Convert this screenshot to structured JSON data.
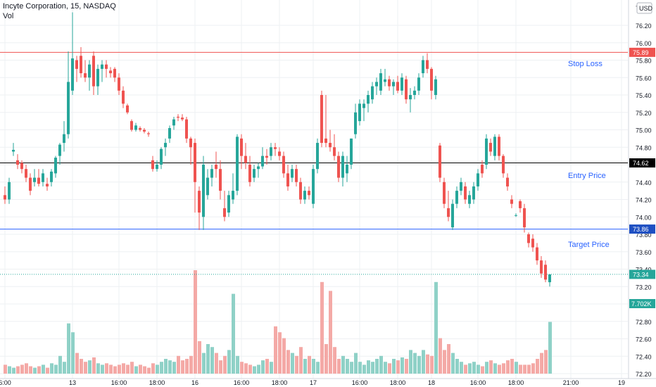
{
  "header": {
    "symbol": "Incyte Corporation, 15, NASDAQ",
    "indicator": "Vol",
    "currency": "USD"
  },
  "colors": {
    "up": "#26a69a",
    "down": "#ef5350",
    "up_vol": "#8fd1c7",
    "down_vol": "#f4a9a6",
    "stop": "#ef5350",
    "entry": "#000000",
    "target": "#2962ff",
    "target_badge": "#1e4fc2",
    "last": "#26a69a",
    "annotation": "#2962ff"
  },
  "chart_data": {
    "type": "candlestick",
    "symbol": "Incyte Corporation",
    "interval": "15",
    "exchange": "NASDAQ",
    "y_axis": {
      "ticks": [
        "76.20",
        "76.00",
        "75.80",
        "75.60",
        "75.40",
        "75.20",
        "75.00",
        "74.80",
        "74.60",
        "74.40",
        "74.20",
        "74.00",
        "73.80",
        "73.60",
        "73.40",
        "73.20",
        "73.00",
        "72.80",
        "72.60",
        "72.40",
        "72.20"
      ],
      "range": [
        72.15,
        76.5
      ]
    },
    "x_axis": {
      "ticks": [
        {
          "label": "6:00",
          "bar": 0
        },
        {
          "label": "13",
          "bar": 16
        },
        {
          "label": "16:00",
          "bar": 27
        },
        {
          "label": "18:00",
          "bar": 36
        },
        {
          "label": "16",
          "bar": 45
        },
        {
          "label": "16:00",
          "bar": 56
        },
        {
          "label": "18:00",
          "bar": 65
        },
        {
          "label": "17",
          "bar": 73
        },
        {
          "label": "16:00",
          "bar": 84
        },
        {
          "label": "18:00",
          "bar": 93
        },
        {
          "label": "18",
          "bar": 101
        },
        {
          "label": "16:00",
          "bar": 112
        },
        {
          "label": "18:00",
          "bar": 121
        },
        {
          "label": "21:00",
          "bar": 134
        },
        {
          "label": "19",
          "bar": 146
        }
      ]
    },
    "levels": [
      {
        "name": "Stop Loss",
        "value": 75.89,
        "label": "75.89",
        "style": "stop"
      },
      {
        "name": "Entry Price",
        "value": 74.62,
        "label": "74.62",
        "style": "entry"
      },
      {
        "name": "Target Price",
        "value": 73.86,
        "label": "73.86",
        "style": "target"
      }
    ],
    "last_price": {
      "value": 73.34,
      "label": "73.34"
    },
    "volume_label": "7.702K",
    "candles": [
      [
        74.25,
        74.35,
        74.15,
        74.2,
        6
      ],
      [
        74.2,
        74.45,
        74.15,
        74.4,
        5
      ],
      [
        74.75,
        74.85,
        74.7,
        74.77,
        4
      ],
      [
        74.65,
        74.72,
        74.55,
        74.6,
        5
      ],
      [
        74.62,
        74.65,
        74.5,
        74.55,
        6
      ],
      [
        74.55,
        74.6,
        74.4,
        74.45,
        7
      ],
      [
        74.45,
        74.5,
        74.25,
        74.3,
        5
      ],
      [
        74.4,
        74.55,
        74.35,
        74.45,
        4
      ],
      [
        74.45,
        74.55,
        74.35,
        74.38,
        5
      ],
      [
        74.4,
        74.55,
        74.35,
        74.5,
        6
      ],
      [
        74.38,
        74.45,
        74.3,
        74.35,
        4
      ],
      [
        74.4,
        74.55,
        74.35,
        74.52,
        7
      ],
      [
        74.5,
        74.7,
        74.45,
        74.68,
        6
      ],
      [
        74.7,
        74.85,
        74.6,
        74.83,
        12
      ],
      [
        74.85,
        75.1,
        74.75,
        74.95,
        8
      ],
      [
        74.95,
        75.9,
        74.9,
        75.55,
        34
      ],
      [
        75.45,
        76.35,
        75.4,
        75.82,
        28
      ],
      [
        75.8,
        75.85,
        75.55,
        75.7,
        14
      ],
      [
        75.85,
        75.95,
        75.6,
        75.65,
        10
      ],
      [
        75.65,
        75.8,
        75.55,
        75.6,
        8
      ],
      [
        75.6,
        75.8,
        75.45,
        75.75,
        9
      ],
      [
        75.85,
        75.9,
        75.4,
        75.5,
        11
      ],
      [
        75.5,
        75.75,
        75.4,
        75.7,
        7
      ],
      [
        75.7,
        75.8,
        75.55,
        75.75,
        6
      ],
      [
        75.75,
        75.8,
        75.6,
        75.7,
        7
      ],
      [
        75.68,
        75.72,
        75.6,
        75.65,
        6
      ],
      [
        75.7,
        75.72,
        75.55,
        75.6,
        5
      ],
      [
        75.6,
        75.65,
        75.4,
        75.45,
        6
      ],
      [
        75.45,
        75.5,
        75.25,
        75.3,
        7
      ],
      [
        75.28,
        75.3,
        75.18,
        75.2,
        6
      ],
      [
        75.1,
        75.12,
        74.98,
        75.0,
        8
      ],
      [
        75.0,
        75.08,
        74.98,
        75.05,
        5
      ],
      [
        75.02,
        75.04,
        74.98,
        75.0,
        6
      ],
      [
        75.0,
        75.02,
        74.96,
        74.98,
        5
      ],
      [
        74.96,
        74.98,
        74.92,
        74.95,
        4
      ],
      [
        74.65,
        74.7,
        74.52,
        74.55,
        7
      ],
      [
        74.55,
        74.65,
        74.52,
        74.6,
        6
      ],
      [
        74.6,
        74.8,
        74.55,
        74.78,
        8
      ],
      [
        74.8,
        74.9,
        74.7,
        74.85,
        10
      ],
      [
        74.9,
        75.05,
        74.85,
        75.02,
        9
      ],
      [
        75.05,
        75.15,
        75.0,
        75.12,
        8
      ],
      [
        75.15,
        75.18,
        75.1,
        75.14,
        12
      ],
      [
        75.14,
        75.18,
        75.1,
        75.12,
        9
      ],
      [
        75.12,
        75.15,
        74.85,
        74.9,
        10
      ],
      [
        74.9,
        74.92,
        74.6,
        74.8,
        12
      ],
      [
        74.85,
        74.9,
        74.05,
        74.4,
        70
      ],
      [
        74.3,
        74.35,
        73.85,
        74.05,
        22
      ],
      [
        74.0,
        74.7,
        73.85,
        74.6,
        14
      ],
      [
        74.25,
        74.55,
        74.2,
        74.45,
        20
      ],
      [
        74.45,
        74.6,
        74.35,
        74.55,
        18
      ],
      [
        74.6,
        74.75,
        74.45,
        74.55,
        14
      ],
      [
        74.55,
        74.65,
        74.2,
        74.3,
        9
      ],
      [
        74.1,
        74.3,
        73.95,
        74.0,
        12
      ],
      [
        74.05,
        74.3,
        74.0,
        74.25,
        16
      ],
      [
        74.2,
        74.5,
        74.15,
        74.3,
        54
      ],
      [
        74.3,
        74.95,
        74.25,
        74.92,
        12
      ],
      [
        74.9,
        74.95,
        74.55,
        74.7,
        8
      ],
      [
        74.7,
        74.85,
        74.55,
        74.62,
        7
      ],
      [
        74.6,
        74.7,
        74.35,
        74.4,
        6
      ],
      [
        74.45,
        74.6,
        74.4,
        74.55,
        5
      ],
      [
        74.55,
        74.62,
        74.45,
        74.58,
        6
      ],
      [
        74.58,
        74.8,
        74.55,
        74.7,
        9
      ],
      [
        74.7,
        74.78,
        74.6,
        74.68,
        10
      ],
      [
        74.7,
        74.85,
        74.65,
        74.8,
        8
      ],
      [
        74.8,
        74.85,
        74.7,
        74.78,
        32
      ],
      [
        74.75,
        74.8,
        74.65,
        74.7,
        28
      ],
      [
        74.7,
        74.75,
        74.45,
        74.5,
        24
      ],
      [
        74.5,
        74.6,
        74.3,
        74.35,
        16
      ],
      [
        74.45,
        74.6,
        74.4,
        74.55,
        14
      ],
      [
        74.55,
        74.6,
        74.35,
        74.4,
        12
      ],
      [
        74.4,
        74.45,
        74.15,
        74.2,
        18
      ],
      [
        74.2,
        74.35,
        74.15,
        74.3,
        10
      ],
      [
        74.3,
        74.35,
        74.2,
        74.25,
        12
      ],
      [
        74.15,
        74.6,
        74.1,
        74.55,
        10
      ],
      [
        74.55,
        74.9,
        74.5,
        74.85,
        8
      ],
      [
        75.4,
        75.45,
        74.8,
        74.85,
        62
      ],
      [
        74.9,
        75.4,
        74.8,
        74.85,
        20
      ],
      [
        74.85,
        75.0,
        74.75,
        74.8,
        56
      ],
      [
        74.8,
        74.95,
        74.65,
        74.7,
        18
      ],
      [
        74.7,
        74.75,
        74.4,
        74.45,
        10
      ],
      [
        74.45,
        74.75,
        74.35,
        74.7,
        12
      ],
      [
        74.5,
        74.7,
        74.4,
        74.6,
        10
      ],
      [
        74.6,
        74.9,
        74.55,
        74.9,
        8
      ],
      [
        74.95,
        75.3,
        74.9,
        75.2,
        14
      ],
      [
        75.1,
        75.35,
        75.05,
        75.3,
        8
      ],
      [
        75.25,
        75.35,
        75.1,
        75.3,
        6
      ],
      [
        75.3,
        75.45,
        75.2,
        75.4,
        9
      ],
      [
        75.35,
        75.55,
        75.3,
        75.5,
        8
      ],
      [
        75.5,
        75.6,
        75.4,
        75.55,
        10
      ],
      [
        75.45,
        75.7,
        75.4,
        75.65,
        12
      ],
      [
        75.55,
        75.7,
        75.5,
        75.58,
        8
      ],
      [
        75.58,
        75.62,
        75.45,
        75.5,
        7
      ],
      [
        75.5,
        75.58,
        75.4,
        75.55,
        10
      ],
      [
        75.55,
        75.62,
        75.42,
        75.45,
        9
      ],
      [
        75.45,
        75.65,
        75.4,
        75.6,
        11
      ],
      [
        75.58,
        75.62,
        75.3,
        75.35,
        10
      ],
      [
        75.35,
        75.48,
        75.2,
        75.4,
        16
      ],
      [
        75.4,
        75.5,
        75.35,
        75.45,
        14
      ],
      [
        75.45,
        75.65,
        75.4,
        75.6,
        12
      ],
      [
        75.65,
        75.85,
        75.6,
        75.8,
        16
      ],
      [
        75.8,
        75.88,
        75.65,
        75.7,
        13
      ],
      [
        75.7,
        75.72,
        75.35,
        75.45,
        12
      ],
      [
        75.4,
        75.62,
        75.35,
        75.58,
        62
      ],
      [
        74.82,
        74.85,
        74.4,
        74.45,
        24
      ],
      [
        74.4,
        74.45,
        74.1,
        74.15,
        16
      ],
      [
        74.1,
        74.3,
        73.95,
        74.0,
        20
      ],
      [
        73.88,
        74.2,
        73.85,
        74.15,
        14
      ],
      [
        74.15,
        74.35,
        74.1,
        74.3,
        10
      ],
      [
        74.3,
        74.45,
        74.25,
        74.4,
        8
      ],
      [
        74.35,
        74.4,
        74.15,
        74.2,
        6
      ],
      [
        74.15,
        74.3,
        74.1,
        74.25,
        7
      ],
      [
        74.2,
        74.4,
        74.15,
        74.35,
        8
      ],
      [
        74.35,
        74.55,
        74.3,
        74.5,
        6
      ],
      [
        74.6,
        74.65,
        74.45,
        74.5,
        5
      ],
      [
        74.6,
        74.95,
        74.55,
        74.9,
        8
      ],
      [
        74.85,
        74.9,
        74.7,
        74.75,
        9
      ],
      [
        74.7,
        74.95,
        74.65,
        74.92,
        7
      ],
      [
        74.92,
        74.95,
        74.65,
        74.7,
        6
      ],
      [
        74.7,
        74.72,
        74.45,
        74.5,
        7
      ],
      [
        74.45,
        74.5,
        74.3,
        74.35,
        9
      ],
      [
        74.2,
        74.25,
        74.1,
        74.15,
        10
      ],
      [
        74.02,
        74.04,
        74.0,
        74.02,
        8
      ],
      [
        74.18,
        74.2,
        74.05,
        74.1,
        6
      ],
      [
        74.1,
        74.15,
        73.82,
        73.88,
        6
      ],
      [
        73.8,
        73.82,
        73.65,
        73.7,
        6
      ],
      [
        73.75,
        73.8,
        73.6,
        73.65,
        7
      ],
      [
        73.65,
        73.7,
        73.45,
        73.5,
        10
      ],
      [
        73.5,
        73.55,
        73.3,
        73.35,
        14
      ],
      [
        73.45,
        73.5,
        73.25,
        73.28,
        16
      ],
      [
        73.25,
        73.34,
        73.2,
        73.34,
        35
      ]
    ]
  },
  "annotations": {
    "stop_loss": "Stop Loss",
    "entry_price": "Entry Price",
    "target_price": "Target Price"
  },
  "partial_tick_left": "7"
}
